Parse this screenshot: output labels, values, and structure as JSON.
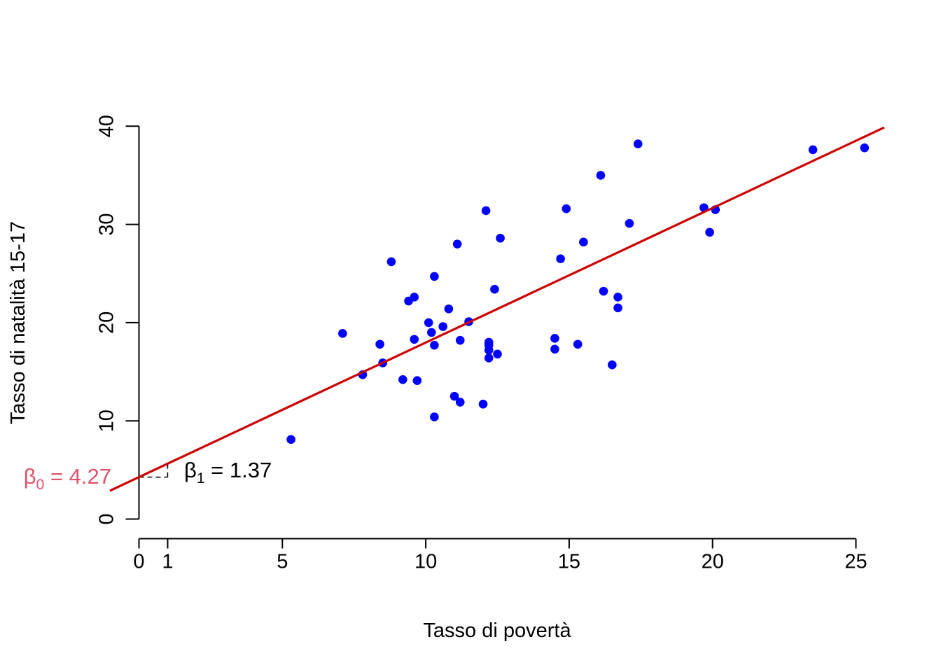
{
  "chart_data": {
    "type": "scatter",
    "title": "",
    "xlabel": "Tasso di povertà",
    "ylabel": "Tasso di natalità 15-17",
    "xlim": [
      -1,
      26
    ],
    "ylim": [
      0,
      40
    ],
    "x_ticks": [
      0,
      1,
      5,
      10,
      15,
      20,
      25
    ],
    "y_ticks": [
      0,
      10,
      20,
      30,
      40
    ],
    "grid": false,
    "legend": "none",
    "colors": {
      "points": "#0000ff",
      "regression_line": "#cc0000",
      "intercept_label": "#df536b",
      "axis": "#000000"
    },
    "series": [
      {
        "x": [
          5.3,
          7.1,
          7.8,
          8.4,
          8.5,
          8.8,
          9.2,
          9.4,
          9.6,
          9.6,
          9.7,
          10.1,
          10.2,
          10.3,
          10.3,
          10.3,
          10.6,
          10.8,
          11.0,
          11.1,
          11.2,
          11.2,
          11.5,
          12.0,
          12.1,
          12.2,
          12.2,
          12.2,
          12.2,
          12.4,
          12.5,
          12.6,
          14.5,
          14.5,
          14.7,
          14.9,
          15.3,
          15.5,
          16.1,
          16.2,
          16.5,
          16.7,
          16.7,
          17.1,
          17.4,
          19.7,
          19.9,
          20.1,
          23.5,
          25.3
        ],
        "y": [
          8.1,
          18.9,
          14.7,
          17.8,
          15.9,
          26.2,
          14.2,
          22.2,
          22.6,
          18.3,
          14.1,
          20.0,
          19.0,
          24.7,
          17.7,
          10.4,
          19.6,
          21.4,
          12.5,
          28.0,
          18.2,
          11.9,
          20.1,
          11.7,
          31.4,
          18.0,
          17.7,
          17.2,
          16.4,
          23.4,
          16.8,
          28.6,
          18.4,
          17.3,
          26.5,
          31.6,
          17.8,
          28.2,
          35.0,
          23.2,
          15.7,
          22.6,
          21.5,
          30.1,
          38.2,
          31.7,
          29.2,
          31.5,
          37.6,
          37.8
        ]
      }
    ],
    "regression": {
      "intercept": 4.27,
      "slope": 1.37
    },
    "annotations": {
      "beta0_symbol": "β",
      "beta0_sub": "0",
      "beta0_text": " = 4.27",
      "beta1_symbol": "β",
      "beta1_sub": "1",
      "beta1_text": " = 1.37"
    }
  }
}
